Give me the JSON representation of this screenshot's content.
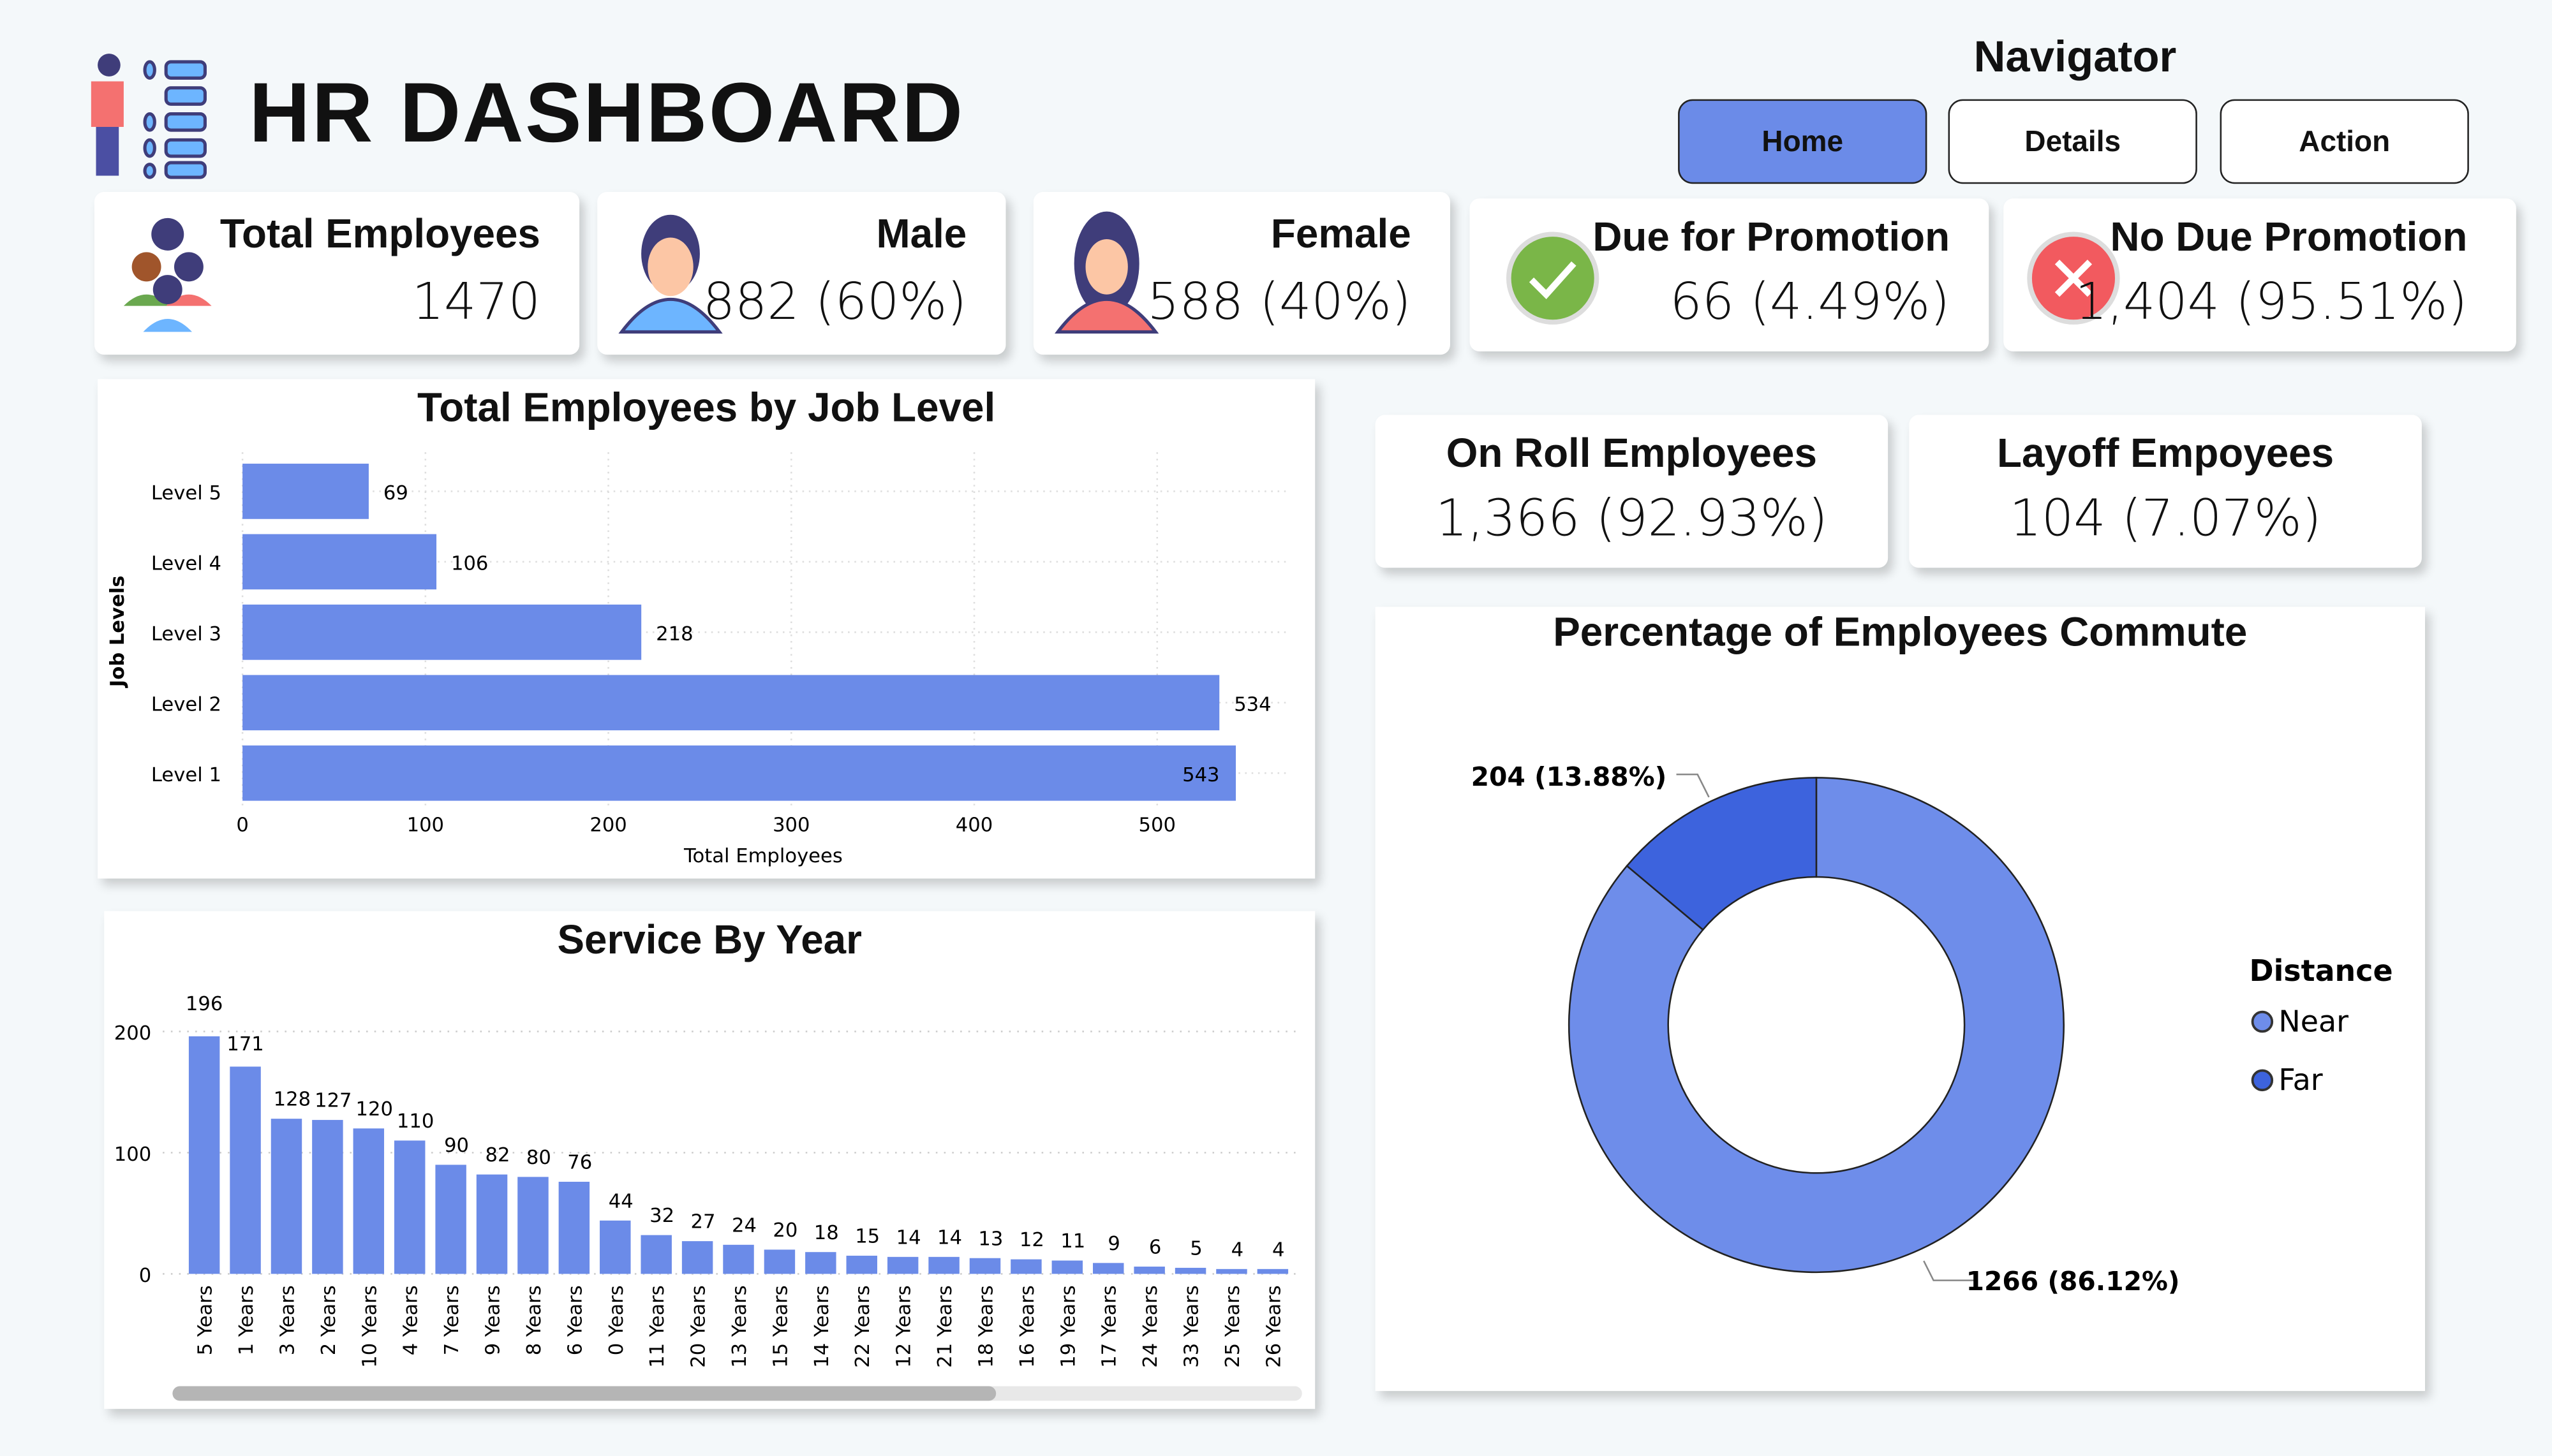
{
  "header": {
    "title": "HR DASHBOARD",
    "icon": "hr-list-person-icon"
  },
  "navigator": {
    "label": "Navigator",
    "buttons": [
      {
        "label": "Home",
        "active": true
      },
      {
        "label": "Details",
        "active": false
      },
      {
        "label": "Action",
        "active": false
      }
    ],
    "accent": "#6b8be8"
  },
  "kpis": [
    {
      "label": "Total Employees",
      "value": "1470",
      "icon": "group-people-icon"
    },
    {
      "label": "Male",
      "value": "882 (60%)",
      "icon": "male-avatar-icon"
    },
    {
      "label": "Female",
      "value": "588 (40%)",
      "icon": "female-avatar-icon"
    },
    {
      "label": "Due for Promotion",
      "value": "66 (4.49%)",
      "icon": "check-circle-icon"
    },
    {
      "label": "No Due Promotion",
      "value": "1,404 (95.51%)",
      "icon": "x-circle-icon"
    },
    {
      "label": "On Roll Employees",
      "value": "1,366 (92.93%)"
    },
    {
      "label": "Layoff Empoyees",
      "value": "104 (7.07%)"
    }
  ],
  "chart_data": [
    {
      "type": "bar",
      "orientation": "horizontal",
      "title": "Total Employees by Job Level",
      "xlabel": "Total Employees",
      "ylabel": "Job Levels",
      "categories": [
        "Level 5",
        "Level 4",
        "Level 3",
        "Level 2",
        "Level 1"
      ],
      "values": [
        69,
        106,
        218,
        534,
        543
      ],
      "xticks": [
        "0",
        "100",
        "200",
        "300",
        "400",
        "500"
      ],
      "xlim": [
        0,
        570
      ],
      "grid": true,
      "color": "#6b8be8"
    },
    {
      "type": "bar",
      "title": "Service By Year",
      "yticks": [
        "0",
        "100",
        "200"
      ],
      "ylim": [
        0,
        200
      ],
      "grid": true,
      "color": "#6b8be8",
      "categories": [
        "5 Years",
        "1 Years",
        "3 Years",
        "2 Years",
        "10 Years",
        "4 Years",
        "7 Years",
        "9 Years",
        "8 Years",
        "6 Years",
        "0 Years",
        "11 Years",
        "20 Years",
        "13 Years",
        "15 Years",
        "14 Years",
        "22 Years",
        "12 Years",
        "21 Years",
        "18 Years",
        "16 Years",
        "19 Years",
        "17 Years",
        "24 Years",
        "33 Years",
        "25 Years",
        "26 Years"
      ],
      "values": [
        196,
        171,
        128,
        127,
        120,
        110,
        90,
        82,
        80,
        76,
        44,
        32,
        27,
        24,
        20,
        18,
        15,
        14,
        14,
        13,
        12,
        11,
        9,
        6,
        5,
        4,
        4
      ]
    },
    {
      "type": "pie",
      "donut": true,
      "title": "Percentage of Employees Commute",
      "legend_title": "Distance",
      "legend_position": "right",
      "series": [
        {
          "name": "Near",
          "value": 1266,
          "label": "1266 (86.12%)",
          "color": "#6e8dea"
        },
        {
          "name": "Far",
          "value": 204,
          "label": "204 (13.88%)",
          "color": "#3d63dd"
        }
      ]
    }
  ]
}
